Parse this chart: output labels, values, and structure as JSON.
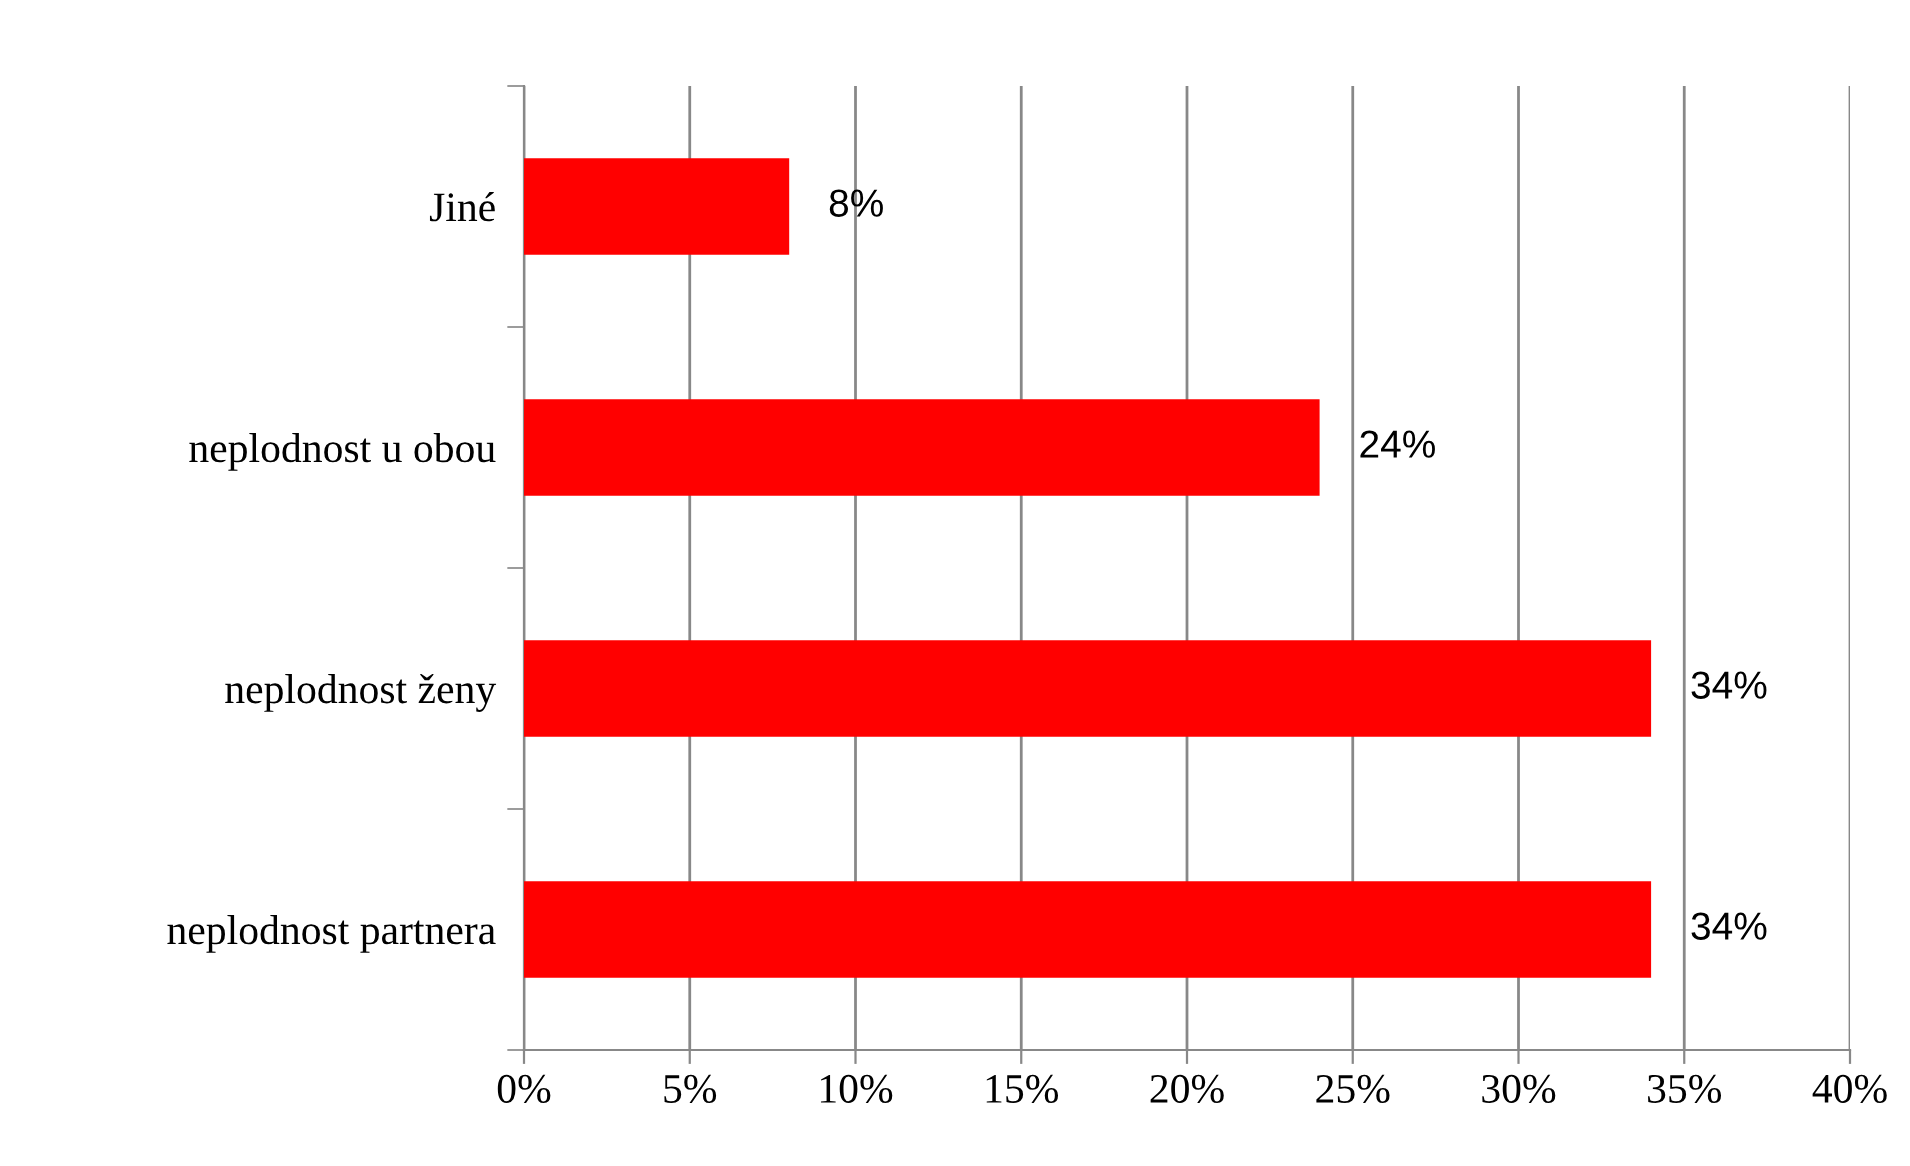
{
  "chart_data": {
    "type": "bar",
    "orientation": "horizontal",
    "categories": [
      "Jiné",
      "neplodnost u obou",
      "neplodnost ženy",
      "neplodnost partnera"
    ],
    "values": [
      8,
      24,
      34,
      34
    ],
    "value_labels": [
      "8%",
      "24%",
      "34%",
      "34%"
    ],
    "color": "#ff0000",
    "xlim": [
      0,
      40
    ],
    "xticks": [
      {
        "value": 0,
        "label": "0%"
      },
      {
        "value": 5,
        "label": "5%"
      },
      {
        "value": 10,
        "label": "10%"
      },
      {
        "value": 15,
        "label": "15%"
      },
      {
        "value": 20,
        "label": "20%"
      },
      {
        "value": 25,
        "label": "25%"
      },
      {
        "value": 30,
        "label": "30%"
      },
      {
        "value": 35,
        "label": "35%"
      },
      {
        "value": 40,
        "label": "40%"
      }
    ],
    "grid": "x",
    "legend": false
  }
}
